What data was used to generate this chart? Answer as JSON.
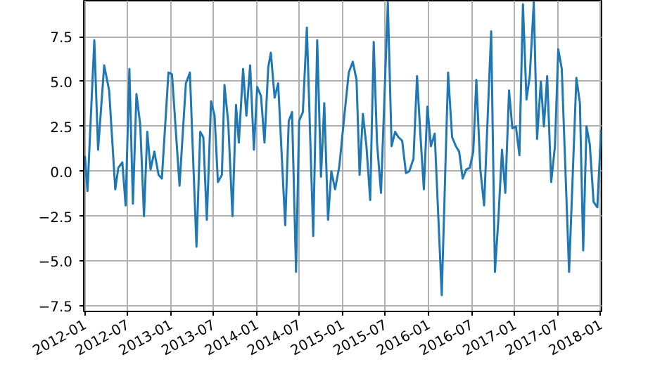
{
  "chart_data": {
    "type": "line",
    "x": [
      "2012-01-01",
      "2012-01-12",
      "2012-02-10",
      "2012-02-26",
      "2012-03-23",
      "2012-04-13",
      "2012-05-09",
      "2012-05-22",
      "2012-06-08",
      "2012-06-22",
      "2012-07-08",
      "2012-07-23",
      "2012-08-07",
      "2012-08-23",
      "2012-09-08",
      "2012-09-22",
      "2012-10-06",
      "2012-10-22",
      "2012-11-09",
      "2012-11-23",
      "2012-12-21",
      "2013-01-05",
      "2013-02-06",
      "2013-03-05",
      "2013-03-22",
      "2013-04-19",
      "2013-05-05",
      "2013-05-18",
      "2013-06-02",
      "2013-06-20",
      "2013-07-05",
      "2013-07-19",
      "2013-08-05",
      "2013-08-16",
      "2013-09-01",
      "2013-09-19",
      "2013-10-04",
      "2013-10-16",
      "2013-11-03",
      "2013-11-17",
      "2013-12-03",
      "2013-12-19",
      "2014-01-02",
      "2014-01-18",
      "2014-02-02",
      "2014-02-18",
      "2014-03-01",
      "2014-03-17",
      "2014-04-01",
      "2014-05-01",
      "2014-05-16",
      "2014-05-30",
      "2014-06-16",
      "2014-06-29",
      "2014-07-15",
      "2014-08-01",
      "2014-08-28",
      "2014-09-14",
      "2014-09-30",
      "2014-10-14",
      "2014-10-30",
      "2014-11-13",
      "2014-11-29",
      "2014-12-17",
      "2015-01-08",
      "2015-01-26",
      "2015-02-12",
      "2015-02-28",
      "2015-03-13",
      "2015-03-27",
      "2015-04-11",
      "2015-04-27",
      "2015-05-12",
      "2015-05-26",
      "2015-06-12",
      "2015-07-11",
      "2015-07-27",
      "2015-08-11",
      "2015-08-25",
      "2015-09-10",
      "2015-09-26",
      "2015-10-10",
      "2015-10-28",
      "2015-11-12",
      "2015-11-27",
      "2015-12-11",
      "2015-12-26",
      "2016-01-10",
      "2016-01-26",
      "2016-02-25",
      "2016-03-23",
      "2016-04-09",
      "2016-04-25",
      "2016-05-09",
      "2016-05-24",
      "2016-06-08",
      "2016-06-23",
      "2016-07-08",
      "2016-07-21",
      "2016-08-07",
      "2016-08-23",
      "2016-09-22",
      "2016-10-08",
      "2016-10-22",
      "2016-11-07",
      "2016-11-21",
      "2016-12-07",
      "2016-12-21",
      "2017-01-05",
      "2017-01-20",
      "2017-02-04",
      "2017-02-19",
      "2017-03-05",
      "2017-03-22",
      "2017-04-05",
      "2017-04-21",
      "2017-05-04",
      "2017-05-18",
      "2017-06-04",
      "2017-06-20",
      "2017-07-04",
      "2017-07-19",
      "2017-08-19",
      "2017-09-19",
      "2017-10-04",
      "2017-10-18",
      "2017-11-01",
      "2017-11-15",
      "2017-12-01",
      "2017-12-17",
      "2018-01-02"
    ],
    "series": [
      {
        "color": "#1f77b4",
        "values": [
          0.86,
          -1.1,
          7.3,
          1.2,
          5.9,
          4.5,
          -1.0,
          0.2,
          0.5,
          -1.9,
          5.7,
          -1.8,
          4.3,
          2.6,
          -2.5,
          2.2,
          0.1,
          1.1,
          -0.2,
          -0.4,
          5.5,
          5.4,
          -0.8,
          4.9,
          5.5,
          -4.2,
          2.2,
          1.9,
          -2.7,
          3.9,
          3.1,
          -0.6,
          -0.2,
          4.8,
          2.7,
          -2.5,
          3.7,
          1.6,
          5.7,
          3.1,
          5.9,
          1.2,
          4.7,
          4.2,
          1.6,
          5.8,
          6.6,
          4.1,
          4.9,
          -3.0,
          2.8,
          3.3,
          -5.6,
          2.8,
          3.3,
          8.0,
          -3.6,
          7.3,
          -0.3,
          3.8,
          -2.7,
          0.0,
          -1.0,
          0.3,
          3.2,
          5.5,
          6.1,
          5.1,
          -0.2,
          3.2,
          1.4,
          -1.6,
          7.2,
          1.6,
          -1.2,
          9.4,
          1.4,
          2.2,
          1.9,
          1.7,
          -0.1,
          0.0,
          0.7,
          5.3,
          1.9,
          -1.0,
          3.6,
          1.4,
          2.1,
          -6.9,
          5.5,
          1.9,
          1.4,
          1.1,
          -0.4,
          0.1,
          0.2,
          1.1,
          5.1,
          0.1,
          -1.9,
          7.8,
          -5.6,
          -2.8,
          1.2,
          -1.2,
          4.5,
          2.4,
          2.5,
          0.9,
          9.3,
          4.0,
          5.3,
          9.4,
          1.8,
          5.0,
          2.5,
          5.3,
          -0.6,
          1.4,
          6.8,
          5.7,
          -5.6,
          5.2,
          3.8,
          -4.4,
          2.5,
          1.5,
          -1.7,
          -2.0,
          2.3
        ]
      }
    ],
    "xlim": [
      "2011-12-27",
      "2018-01-04"
    ],
    "xticks": [
      "2012-01",
      "2012-07",
      "2013-01",
      "2013-07",
      "2014-01",
      "2014-07",
      "2015-01",
      "2015-07",
      "2016-01",
      "2016-07",
      "2017-01",
      "2017-07",
      "2018-01"
    ],
    "ylim": [
      -7.8,
      9.5
    ],
    "yticks": [
      {
        "value": -7.5,
        "label": "−7.5"
      },
      {
        "value": -5,
        "label": "−5.0"
      },
      {
        "value": -2.5,
        "label": "−2.5"
      },
      {
        "value": 0,
        "label": "0.0"
      },
      {
        "value": 2.5,
        "label": "2.5"
      },
      {
        "value": 5,
        "label": "5.0"
      },
      {
        "value": 7.5,
        "label": "7.5"
      }
    ],
    "grid": true
  }
}
